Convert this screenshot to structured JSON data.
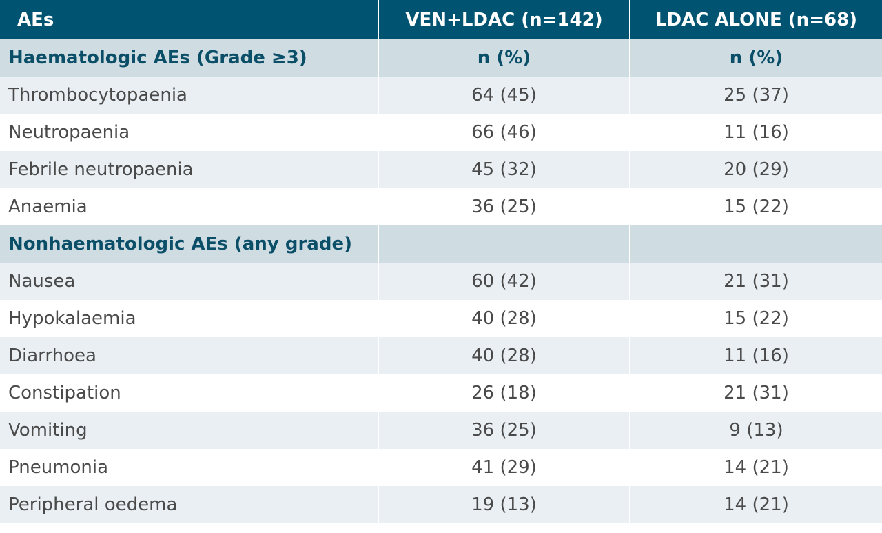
{
  "header": {
    "col1": "AEs",
    "col2": "VEN+LDAC (n=142)",
    "col3": "LDAC ALONE (n=68)"
  },
  "sections": [
    {
      "title": "Haematologic AEs (Grade ≥3)",
      "col2": "n (%)",
      "col3": "n (%)",
      "rows": [
        {
          "name": "Thrombocytopaenia",
          "ven": "64 (45)",
          "ldac": "25 (37)"
        },
        {
          "name": "Neutropaenia",
          "ven": "66 (46)",
          "ldac": "11 (16)"
        },
        {
          "name": "Febrile neutropaenia",
          "ven": "45 (32)",
          "ldac": "20 (29)"
        },
        {
          "name": "Anaemia",
          "ven": "36 (25)",
          "ldac": "15 (22)"
        }
      ]
    },
    {
      "title": "Nonhaematologic AEs (any grade)",
      "col2": "",
      "col3": "",
      "rows": [
        {
          "name": "Nausea",
          "ven": "60 (42)",
          "ldac": "21 (31)"
        },
        {
          "name": "Hypokalaemia",
          "ven": "40 (28)",
          "ldac": "15 (22)"
        },
        {
          "name": "Diarrhoea",
          "ven": "40 (28)",
          "ldac": "11 (16)"
        },
        {
          "name": "Constipation",
          "ven": "26 (18)",
          "ldac": "21 (31)"
        },
        {
          "name": "Vomiting",
          "ven": "36 (25)",
          "ldac": "9 (13)"
        },
        {
          "name": "Pneumonia",
          "ven": "41 (29)",
          "ldac": "14 (21)"
        },
        {
          "name": "Peripheral oedema",
          "ven": "19 (13)",
          "ldac": "14 (21)"
        }
      ]
    }
  ]
}
